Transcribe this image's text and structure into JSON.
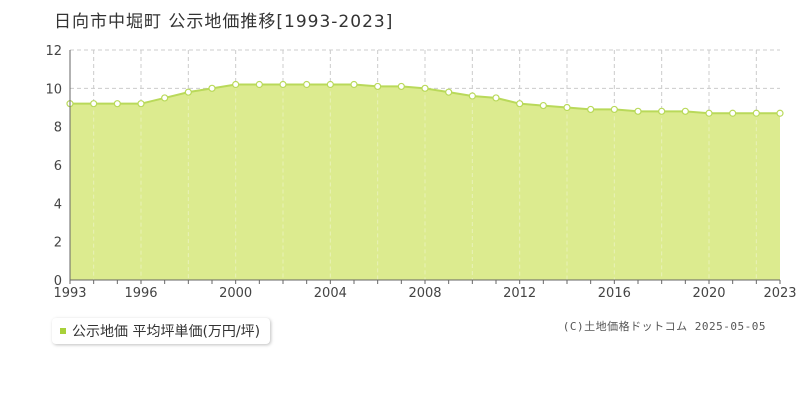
{
  "title": "日向市中堀町 公示地価推移[1993-2023]",
  "legend": {
    "label": "公示地価 平均坪単価(万円/坪)"
  },
  "copyright": "(C)土地価格ドットコム 2025-05-05",
  "colors": {
    "fill": "#dceb8f",
    "line": "#b9d95a",
    "marker_stroke": "#b9d95a",
    "grid": "#cccccc",
    "legend_swatch": "#a8d13a"
  },
  "chart_data": {
    "type": "area",
    "title": "日向市中堀町 公示地価推移[1993-2023]",
    "xlabel": "",
    "ylabel": "",
    "xlim": [
      1993,
      2023
    ],
    "ylim": [
      0,
      12
    ],
    "x_ticks": [
      1993,
      1996,
      2000,
      2004,
      2008,
      2012,
      2016,
      2020,
      2023
    ],
    "y_ticks": [
      0,
      2,
      4,
      6,
      8,
      10,
      12
    ],
    "grid": true,
    "legend_position": "bottom-left",
    "series": [
      {
        "name": "公示地価 平均坪単価(万円/坪)",
        "x": [
          1993,
          1994,
          1995,
          1996,
          1997,
          1998,
          1999,
          2000,
          2001,
          2002,
          2003,
          2004,
          2005,
          2006,
          2007,
          2008,
          2009,
          2010,
          2011,
          2012,
          2013,
          2014,
          2015,
          2016,
          2017,
          2018,
          2019,
          2020,
          2021,
          2022,
          2023
        ],
        "values": [
          9.2,
          9.2,
          9.2,
          9.2,
          9.5,
          9.8,
          10.0,
          10.2,
          10.2,
          10.2,
          10.2,
          10.2,
          10.2,
          10.1,
          10.1,
          10.0,
          9.8,
          9.6,
          9.5,
          9.2,
          9.1,
          9.0,
          8.9,
          8.9,
          8.8,
          8.8,
          8.8,
          8.7,
          8.7,
          8.7,
          8.7
        ]
      }
    ]
  }
}
